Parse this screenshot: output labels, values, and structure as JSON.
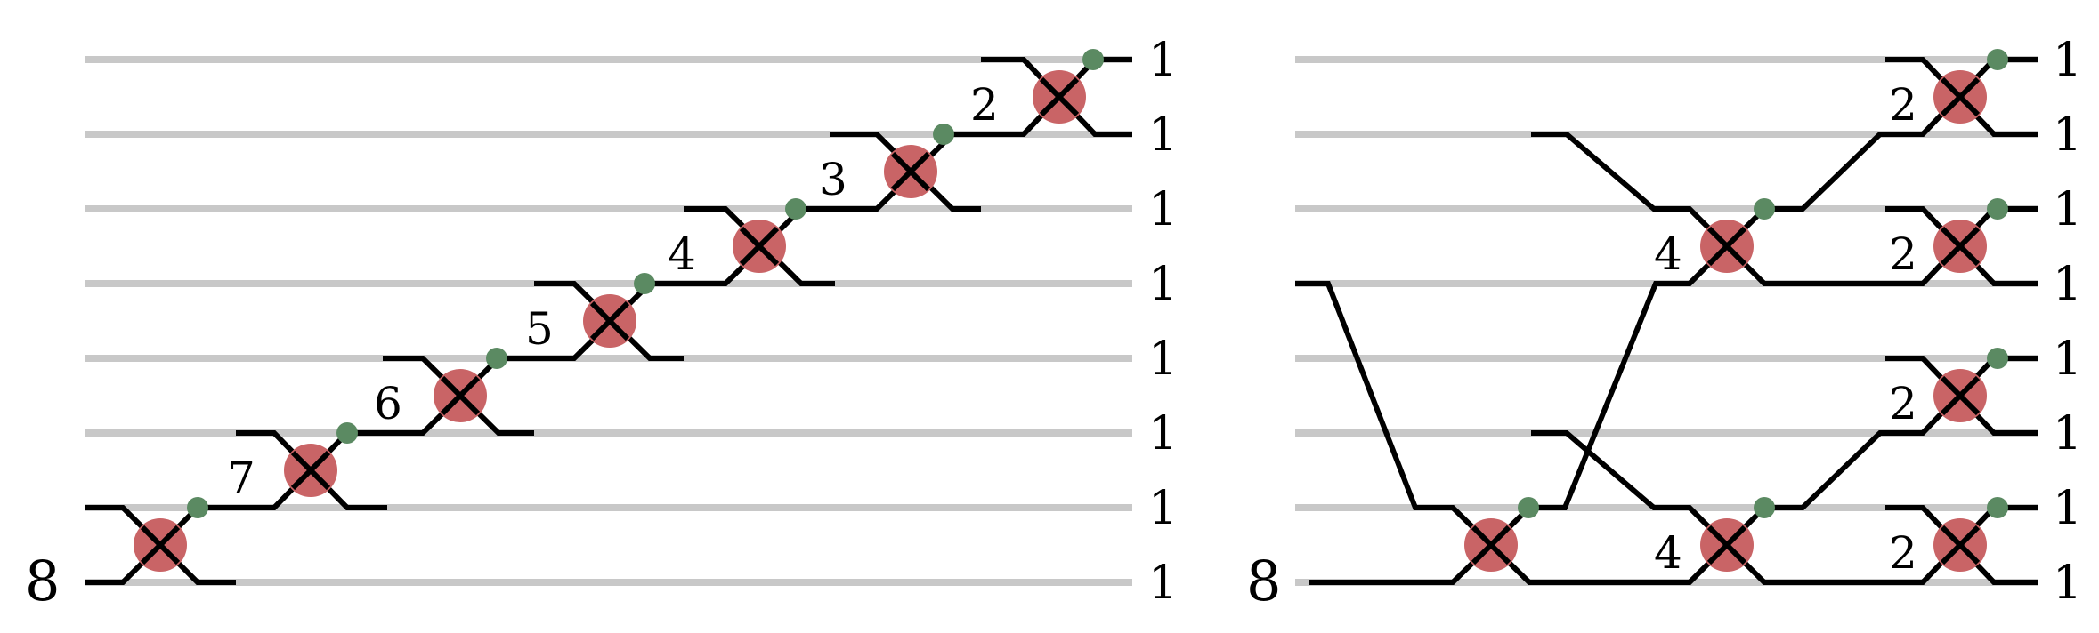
{
  "panels": [
    {
      "id": "left",
      "input_label": "8",
      "output_labels": [
        "1",
        "1",
        "1",
        "1",
        "1",
        "1",
        "1",
        "1"
      ],
      "gate_labels": [
        "7",
        "6",
        "5",
        "4",
        "3",
        "2"
      ]
    },
    {
      "id": "right",
      "input_label": "8",
      "output_labels": [
        "1",
        "1",
        "1",
        "1",
        "1",
        "1",
        "1",
        "1"
      ],
      "gate_labels": [
        "4",
        "4",
        "2",
        "2",
        "2",
        "2"
      ]
    }
  ],
  "colors": {
    "lane": "#c8c8c8",
    "gate": "#c96466",
    "dot": "#5b8a62",
    "line": "#000000"
  }
}
